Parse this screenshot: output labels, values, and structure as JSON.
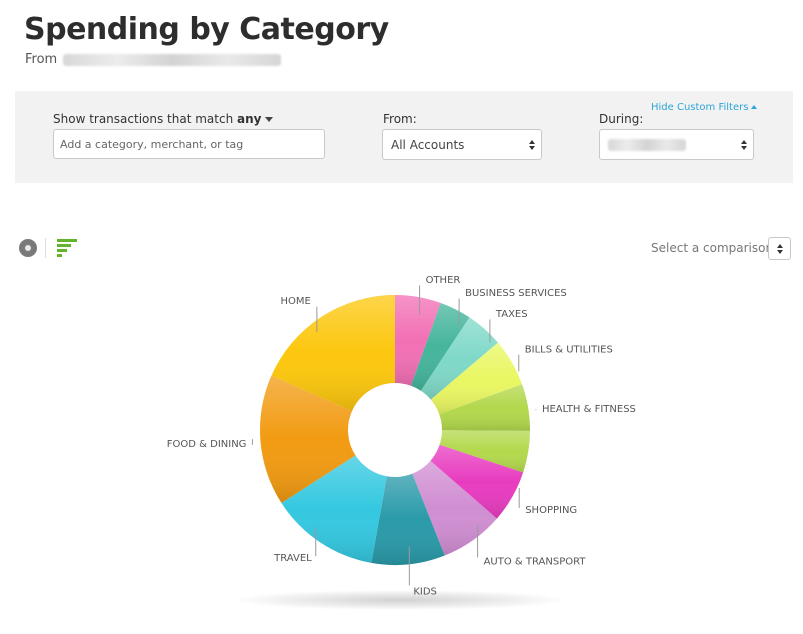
{
  "header": {
    "title": "Spending by Category",
    "subtitle_prefix": "From"
  },
  "filters": {
    "match_label": "Show transactions that match",
    "match_mode": "any",
    "search_placeholder": "Add a category, merchant, or tag",
    "from_label": "From:",
    "from_value": "All Accounts",
    "during_label": "During:",
    "hide_link": "Hide Custom Filters"
  },
  "toolbar": {
    "donut_icon": "donut-chart-icon",
    "bars_icon": "bar-chart-icon",
    "compare_label": "Select a comparison"
  },
  "chart_data": {
    "type": "pie",
    "title": "",
    "categories": [
      "OTHER",
      "BUSINESS SERVICES",
      "TAXES",
      "BILLS & UTILITIES",
      "HEALTH & FITNESS",
      "",
      "SHOPPING",
      "AUTO & TRANSPORT",
      "KIDS",
      "TRAVEL",
      "FOOD & DINING",
      "HOME"
    ],
    "values": [
      5.5,
      3.8,
      4.5,
      5.7,
      5.6,
      5.0,
      6.3,
      7.6,
      8.8,
      13.1,
      15.7,
      18.4
    ],
    "colors": [
      "#f270b5",
      "#45b59b",
      "#7fd9c8",
      "#e9f763",
      "#b3d84c",
      "#b3d84c",
      "#e83cc0",
      "#d08ed2",
      "#2a9aa9",
      "#34c8e0",
      "#f29b12",
      "#fcc70e"
    ],
    "donut": true
  }
}
